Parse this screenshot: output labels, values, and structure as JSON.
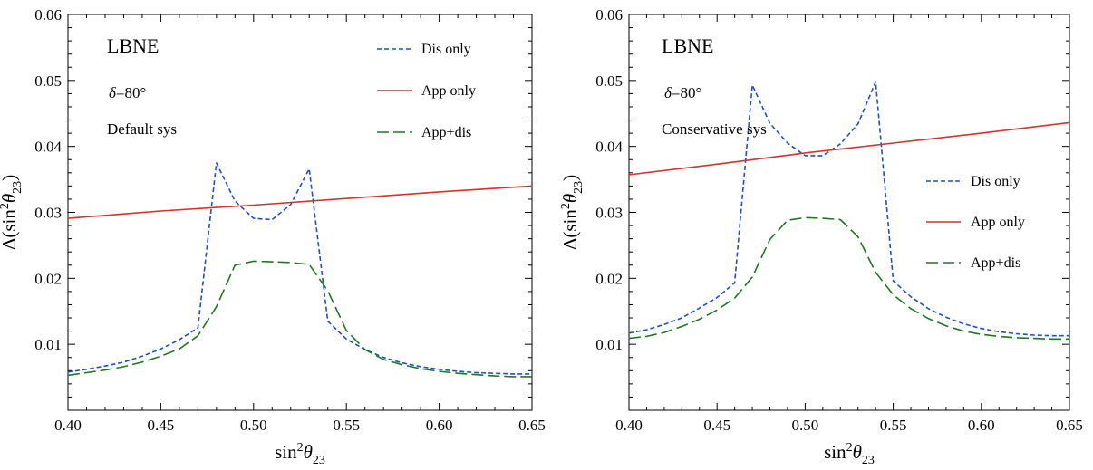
{
  "chart_data": [
    {
      "type": "line",
      "annotations": {
        "experiment": "LBNE",
        "delta": "δ=80°",
        "systematics": "Default sys"
      },
      "xlabel": {
        "base": "sin",
        "sup": "2",
        "theta": "θ",
        "sub": "23"
      },
      "ylabel": {
        "pre": "Δ(sin",
        "sup": "2",
        "theta": "θ",
        "sub": "23",
        "post": ")"
      },
      "xlim": [
        0.4,
        0.65
      ],
      "ylim": [
        0.0,
        0.06
      ],
      "xticks": [
        "0.40",
        "0.45",
        "0.50",
        "0.55",
        "0.60",
        "0.65"
      ],
      "yticks": [
        "0.01",
        "0.02",
        "0.03",
        "0.04",
        "0.05",
        "0.06"
      ],
      "legend_position": "top-right",
      "series": [
        {
          "name": "Dis only",
          "color": "#1a4fd6",
          "style": "dotted",
          "x": [
            0.4,
            0.41,
            0.42,
            0.43,
            0.44,
            0.45,
            0.46,
            0.47,
            0.48,
            0.49,
            0.5,
            0.51,
            0.52,
            0.53,
            0.54,
            0.55,
            0.56,
            0.57,
            0.58,
            0.59,
            0.6,
            0.61,
            0.62,
            0.63,
            0.64,
            0.65
          ],
          "y": [
            0.0058,
            0.0062,
            0.0067,
            0.0073,
            0.0082,
            0.0093,
            0.0107,
            0.0125,
            0.0375,
            0.0317,
            0.0291,
            0.0289,
            0.0312,
            0.0366,
            0.0135,
            0.0108,
            0.0092,
            0.008,
            0.0072,
            0.0066,
            0.0062,
            0.0059,
            0.0057,
            0.0056,
            0.0055,
            0.0055
          ]
        },
        {
          "name": "App only",
          "color": "#d9302c",
          "style": "solid",
          "x": [
            0.4,
            0.45,
            0.5,
            0.55,
            0.6,
            0.65
          ],
          "y": [
            0.0291,
            0.0302,
            0.0311,
            0.0321,
            0.0331,
            0.034
          ]
        },
        {
          "name": "App+dis",
          "color": "#1e7a1e",
          "style": "dashed",
          "x": [
            0.4,
            0.41,
            0.42,
            0.43,
            0.44,
            0.45,
            0.46,
            0.47,
            0.48,
            0.49,
            0.5,
            0.51,
            0.52,
            0.53,
            0.54,
            0.55,
            0.56,
            0.57,
            0.58,
            0.59,
            0.6,
            0.61,
            0.62,
            0.63,
            0.64,
            0.65
          ],
          "y": [
            0.0053,
            0.0057,
            0.0061,
            0.0066,
            0.0073,
            0.0082,
            0.0093,
            0.0113,
            0.0157,
            0.022,
            0.0226,
            0.0225,
            0.0224,
            0.0221,
            0.0181,
            0.0121,
            0.0092,
            0.0077,
            0.0069,
            0.0063,
            0.0059,
            0.0056,
            0.0054,
            0.0052,
            0.0051,
            0.0051
          ]
        }
      ]
    },
    {
      "type": "line",
      "annotations": {
        "experiment": "LBNE",
        "delta": "δ=80°",
        "systematics": "Conservative sys"
      },
      "xlabel": {
        "base": "sin",
        "sup": "2",
        "theta": "θ",
        "sub": "23"
      },
      "ylabel": {
        "pre": "Δ(sin",
        "sup": "2",
        "theta": "θ",
        "sub": "23",
        "post": ")"
      },
      "xlim": [
        0.4,
        0.65
      ],
      "ylim": [
        0.0,
        0.06
      ],
      "xticks": [
        "0.40",
        "0.45",
        "0.50",
        "0.55",
        "0.60",
        "0.65"
      ],
      "yticks": [
        "0.01",
        "0.02",
        "0.03",
        "0.04",
        "0.05",
        "0.06"
      ],
      "legend_position": "middle-right",
      "series": [
        {
          "name": "Dis only",
          "color": "#1a4fd6",
          "style": "dotted",
          "x": [
            0.4,
            0.41,
            0.42,
            0.43,
            0.44,
            0.45,
            0.46,
            0.47,
            0.48,
            0.49,
            0.5,
            0.51,
            0.52,
            0.53,
            0.54,
            0.55,
            0.56,
            0.57,
            0.58,
            0.59,
            0.6,
            0.61,
            0.62,
            0.63,
            0.64,
            0.65
          ],
          "y": [
            0.0117,
            0.0122,
            0.013,
            0.014,
            0.0155,
            0.0171,
            0.0193,
            0.0493,
            0.0435,
            0.0405,
            0.0386,
            0.0386,
            0.0404,
            0.0434,
            0.0498,
            0.0196,
            0.0172,
            0.0154,
            0.0141,
            0.0131,
            0.0124,
            0.0119,
            0.0116,
            0.0114,
            0.0113,
            0.0113
          ]
        },
        {
          "name": "App only",
          "color": "#d9302c",
          "style": "solid",
          "x": [
            0.4,
            0.45,
            0.5,
            0.55,
            0.6,
            0.65
          ],
          "y": [
            0.0357,
            0.0373,
            0.039,
            0.0405,
            0.042,
            0.0436
          ]
        },
        {
          "name": "App+dis",
          "color": "#1e7a1e",
          "style": "dashed",
          "x": [
            0.4,
            0.41,
            0.42,
            0.43,
            0.44,
            0.45,
            0.46,
            0.47,
            0.48,
            0.49,
            0.5,
            0.51,
            0.52,
            0.53,
            0.54,
            0.55,
            0.56,
            0.57,
            0.58,
            0.59,
            0.6,
            0.61,
            0.62,
            0.63,
            0.64,
            0.65
          ],
          "y": [
            0.0109,
            0.0112,
            0.0118,
            0.0127,
            0.0138,
            0.0152,
            0.017,
            0.0202,
            0.0259,
            0.0288,
            0.0292,
            0.0291,
            0.0289,
            0.0263,
            0.0209,
            0.0175,
            0.0154,
            0.0139,
            0.0128,
            0.012,
            0.0115,
            0.0112,
            0.011,
            0.0109,
            0.0108,
            0.0108
          ]
        }
      ]
    }
  ]
}
